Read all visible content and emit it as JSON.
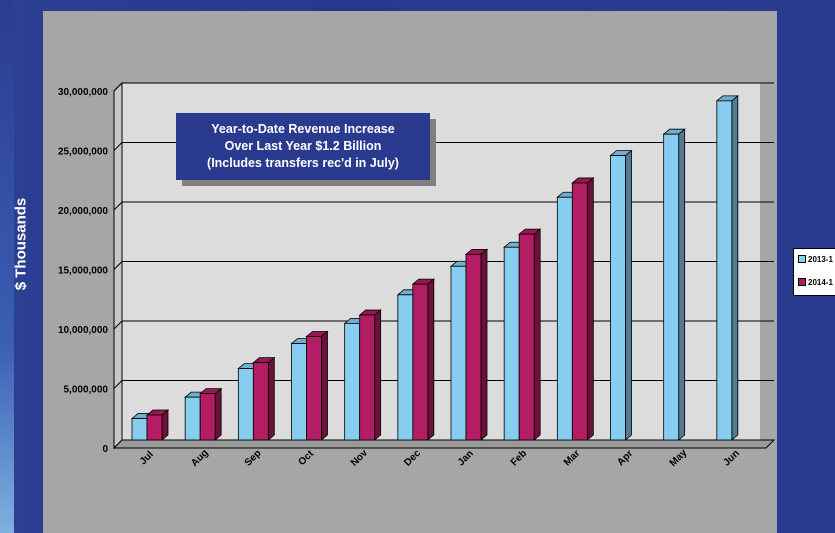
{
  "chart_data": {
    "type": "bar",
    "ylabel": "$ Thousands",
    "xlabel": "",
    "categories": [
      "Jul",
      "Aug",
      "Sep",
      "Oct",
      "Nov",
      "Dec",
      "Jan",
      "Feb",
      "Mar",
      "Apr",
      "May",
      "Jun"
    ],
    "series": [
      {
        "name": "2013-1",
        "color": "#87cdf0",
        "values": [
          1800000,
          3600000,
          6000000,
          8100000,
          9800000,
          12200000,
          14600000,
          16200000,
          20400000,
          23900000,
          25700000,
          28500000
        ]
      },
      {
        "name": "2014-1",
        "color": "#b21d63",
        "values": [
          2100000,
          3900000,
          6500000,
          8700000,
          10500000,
          13100000,
          15600000,
          17300000,
          21600000,
          null,
          null,
          null
        ]
      }
    ],
    "ylim": [
      0,
      30000000
    ],
    "y_ticks": [
      "0",
      "5,000,000",
      "10,000,000",
      "15,000,000",
      "20,000,000",
      "25,000,000",
      "30,000,000"
    ],
    "grid": true,
    "legend_position": "right",
    "annotation": [
      "Year-to-Date Revenue Increase",
      "Over Last Year $1.2 Billion",
      "(Includes transfers rec'd in July)"
    ]
  }
}
